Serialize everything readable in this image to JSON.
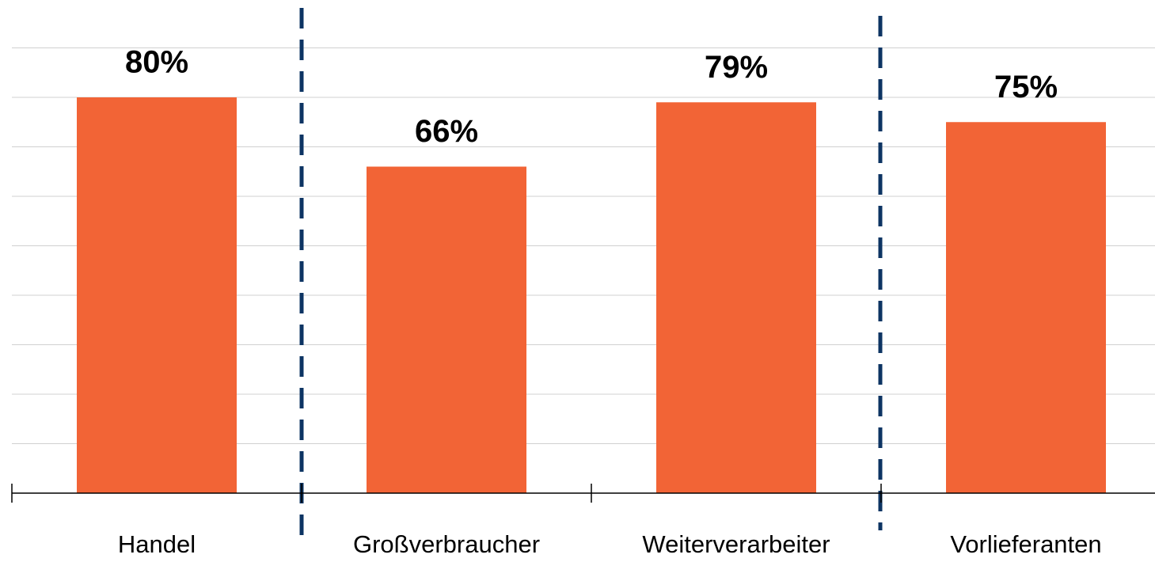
{
  "chart_data": {
    "type": "bar",
    "categories": [
      "Handel",
      "Großverbraucher",
      "Weiterverarbeiter",
      "Vorlieferanten"
    ],
    "values": [
      80,
      66,
      79,
      75
    ],
    "value_labels": [
      "80%",
      "66%",
      "79%",
      "75%"
    ],
    "color": "#f26436",
    "ylim": [
      0,
      90
    ],
    "yticks": [
      0,
      10,
      20,
      30,
      40,
      50,
      60,
      70,
      80,
      90
    ],
    "grid": true
  }
}
